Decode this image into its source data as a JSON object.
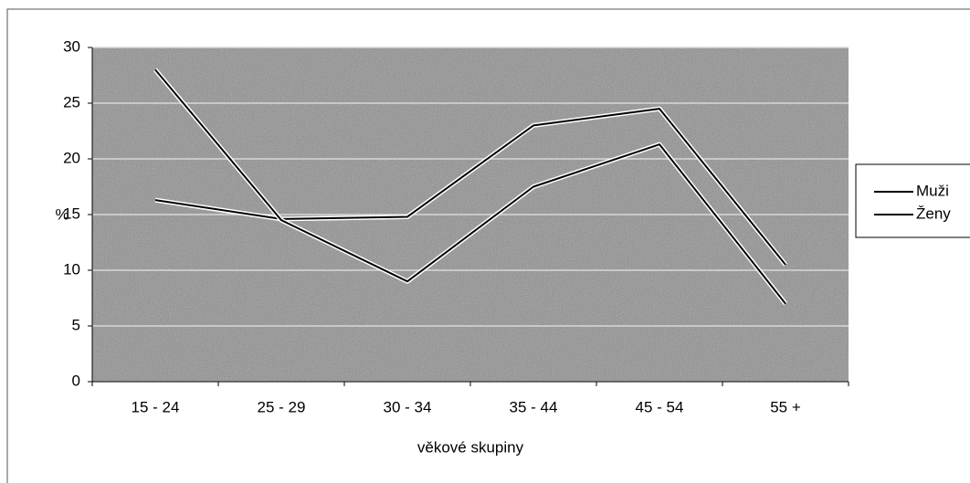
{
  "chart_data": {
    "type": "line",
    "categories": [
      "15 - 24",
      "25 - 29",
      "30 - 34",
      "35 - 44",
      "45 - 54",
      "55 +"
    ],
    "series": [
      {
        "name": "Muži",
        "color": "#000000",
        "values": [
          16.3,
          14.6,
          14.8,
          23,
          24.5,
          10.5
        ]
      },
      {
        "name": "Ženy",
        "color": "#000000",
        "values": [
          28,
          14.5,
          9,
          17.5,
          21.3,
          7
        ]
      }
    ],
    "ylim": [
      0,
      30
    ],
    "yticks": [
      0,
      5,
      10,
      15,
      20,
      25,
      30
    ],
    "ylabel": "%",
    "xlabel": "věkové skupiny",
    "grid": true,
    "legend": "right"
  }
}
